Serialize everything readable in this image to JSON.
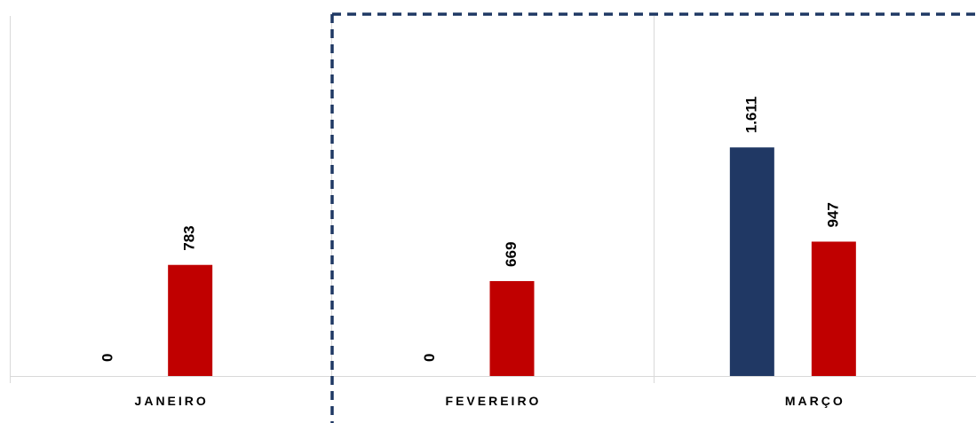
{
  "chart_data": {
    "type": "bar",
    "categories": [
      "JANEIRO",
      "FEVEREIRO",
      "MARÇO"
    ],
    "series": [
      {
        "values": [
          0,
          0,
          1611
        ],
        "labels": [
          "0",
          "0",
          "1.611"
        ],
        "color": "#203864"
      },
      {
        "values": [
          783,
          669,
          947
        ],
        "labels": [
          "783",
          "669",
          "947"
        ],
        "color": "#C00000"
      }
    ],
    "ylim": [
      0,
      2500
    ],
    "grid": "vertical category separators",
    "highlight": {
      "style": "dashed-box",
      "color": "#1F3864",
      "categories": [
        "FEVEREIRO",
        "MARÇO"
      ]
    },
    "legend": "none",
    "title": "",
    "xlabel": "",
    "ylabel": ""
  }
}
